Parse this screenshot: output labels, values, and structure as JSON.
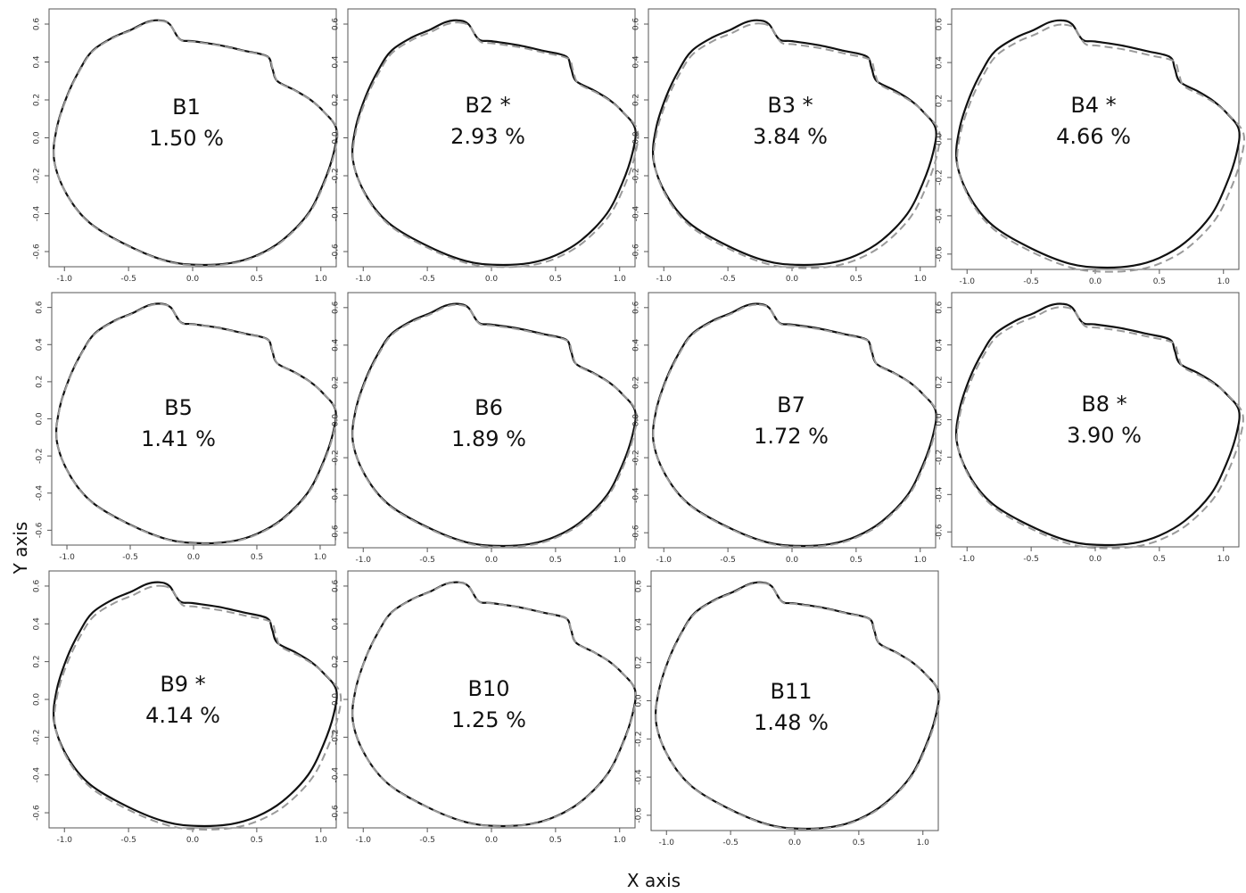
{
  "figure": {
    "xlabel": "X axis",
    "ylabel": "Y axis",
    "xticks": [
      "-1.0",
      "-0.5",
      "0.0",
      "0.5",
      "1.0"
    ],
    "yticks": [
      "0.6",
      "0.4",
      "0.2",
      "0.0",
      "-0.2",
      "-0.4",
      "-0.6"
    ],
    "xlim": [
      -1.12,
      1.12
    ],
    "ylim": [
      -0.68,
      0.68
    ]
  },
  "panels": [
    {
      "name": "B1",
      "pct": "1.50 %",
      "sig": false
    },
    {
      "name": "B2",
      "pct": "2.93 %",
      "sig": true
    },
    {
      "name": "B3",
      "pct": "3.84 %",
      "sig": true
    },
    {
      "name": "B4",
      "pct": "4.66 %",
      "sig": true
    },
    {
      "name": "B5",
      "pct": "1.41 %",
      "sig": false
    },
    {
      "name": "B6",
      "pct": "1.89 %",
      "sig": false
    },
    {
      "name": "B7",
      "pct": "1.72 %",
      "sig": false
    },
    {
      "name": "B8",
      "pct": "3.90 %",
      "sig": true
    },
    {
      "name": "B9",
      "pct": "4.14 %",
      "sig": true
    },
    {
      "name": "B10",
      "pct": "1.25 %",
      "sig": false
    },
    {
      "name": "B11",
      "pct": "1.48 %",
      "sig": false
    }
  ],
  "legend_marker": "*",
  "colors": {
    "solid": "#111111",
    "dashed": "#9a9a9a"
  }
}
